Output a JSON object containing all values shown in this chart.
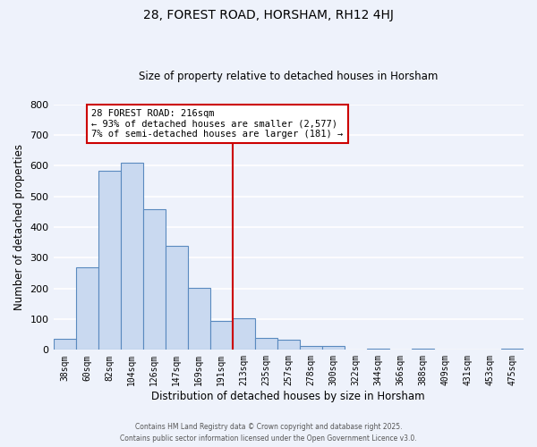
{
  "title": "28, FOREST ROAD, HORSHAM, RH12 4HJ",
  "subtitle": "Size of property relative to detached houses in Horsham",
  "xlabel": "Distribution of detached houses by size in Horsham",
  "ylabel": "Number of detached properties",
  "bin_labels": [
    "38sqm",
    "60sqm",
    "82sqm",
    "104sqm",
    "126sqm",
    "147sqm",
    "169sqm",
    "191sqm",
    "213sqm",
    "235sqm",
    "257sqm",
    "278sqm",
    "300sqm",
    "322sqm",
    "344sqm",
    "366sqm",
    "388sqm",
    "409sqm",
    "431sqm",
    "453sqm",
    "475sqm"
  ],
  "bar_heights": [
    37,
    268,
    585,
    610,
    458,
    338,
    202,
    93,
    102,
    38,
    32,
    12,
    14,
    0,
    5,
    0,
    5,
    0,
    0,
    0,
    3
  ],
  "bar_color": "#c9d9f0",
  "bar_edge_color": "#5a8abf",
  "vline_x_idx": 8,
  "vline_color": "#cc0000",
  "annotation_text": "28 FOREST ROAD: 216sqm\n← 93% of detached houses are smaller (2,577)\n7% of semi-detached houses are larger (181) →",
  "annotation_box_color": "#ffffff",
  "annotation_box_edge_color": "#cc0000",
  "ylim": [
    0,
    800
  ],
  "yticks": [
    0,
    100,
    200,
    300,
    400,
    500,
    600,
    700,
    800
  ],
  "bg_color": "#eef2fb",
  "grid_color": "#ffffff",
  "footer_line1": "Contains HM Land Registry data © Crown copyright and database right 2025.",
  "footer_line2": "Contains public sector information licensed under the Open Government Licence v3.0."
}
